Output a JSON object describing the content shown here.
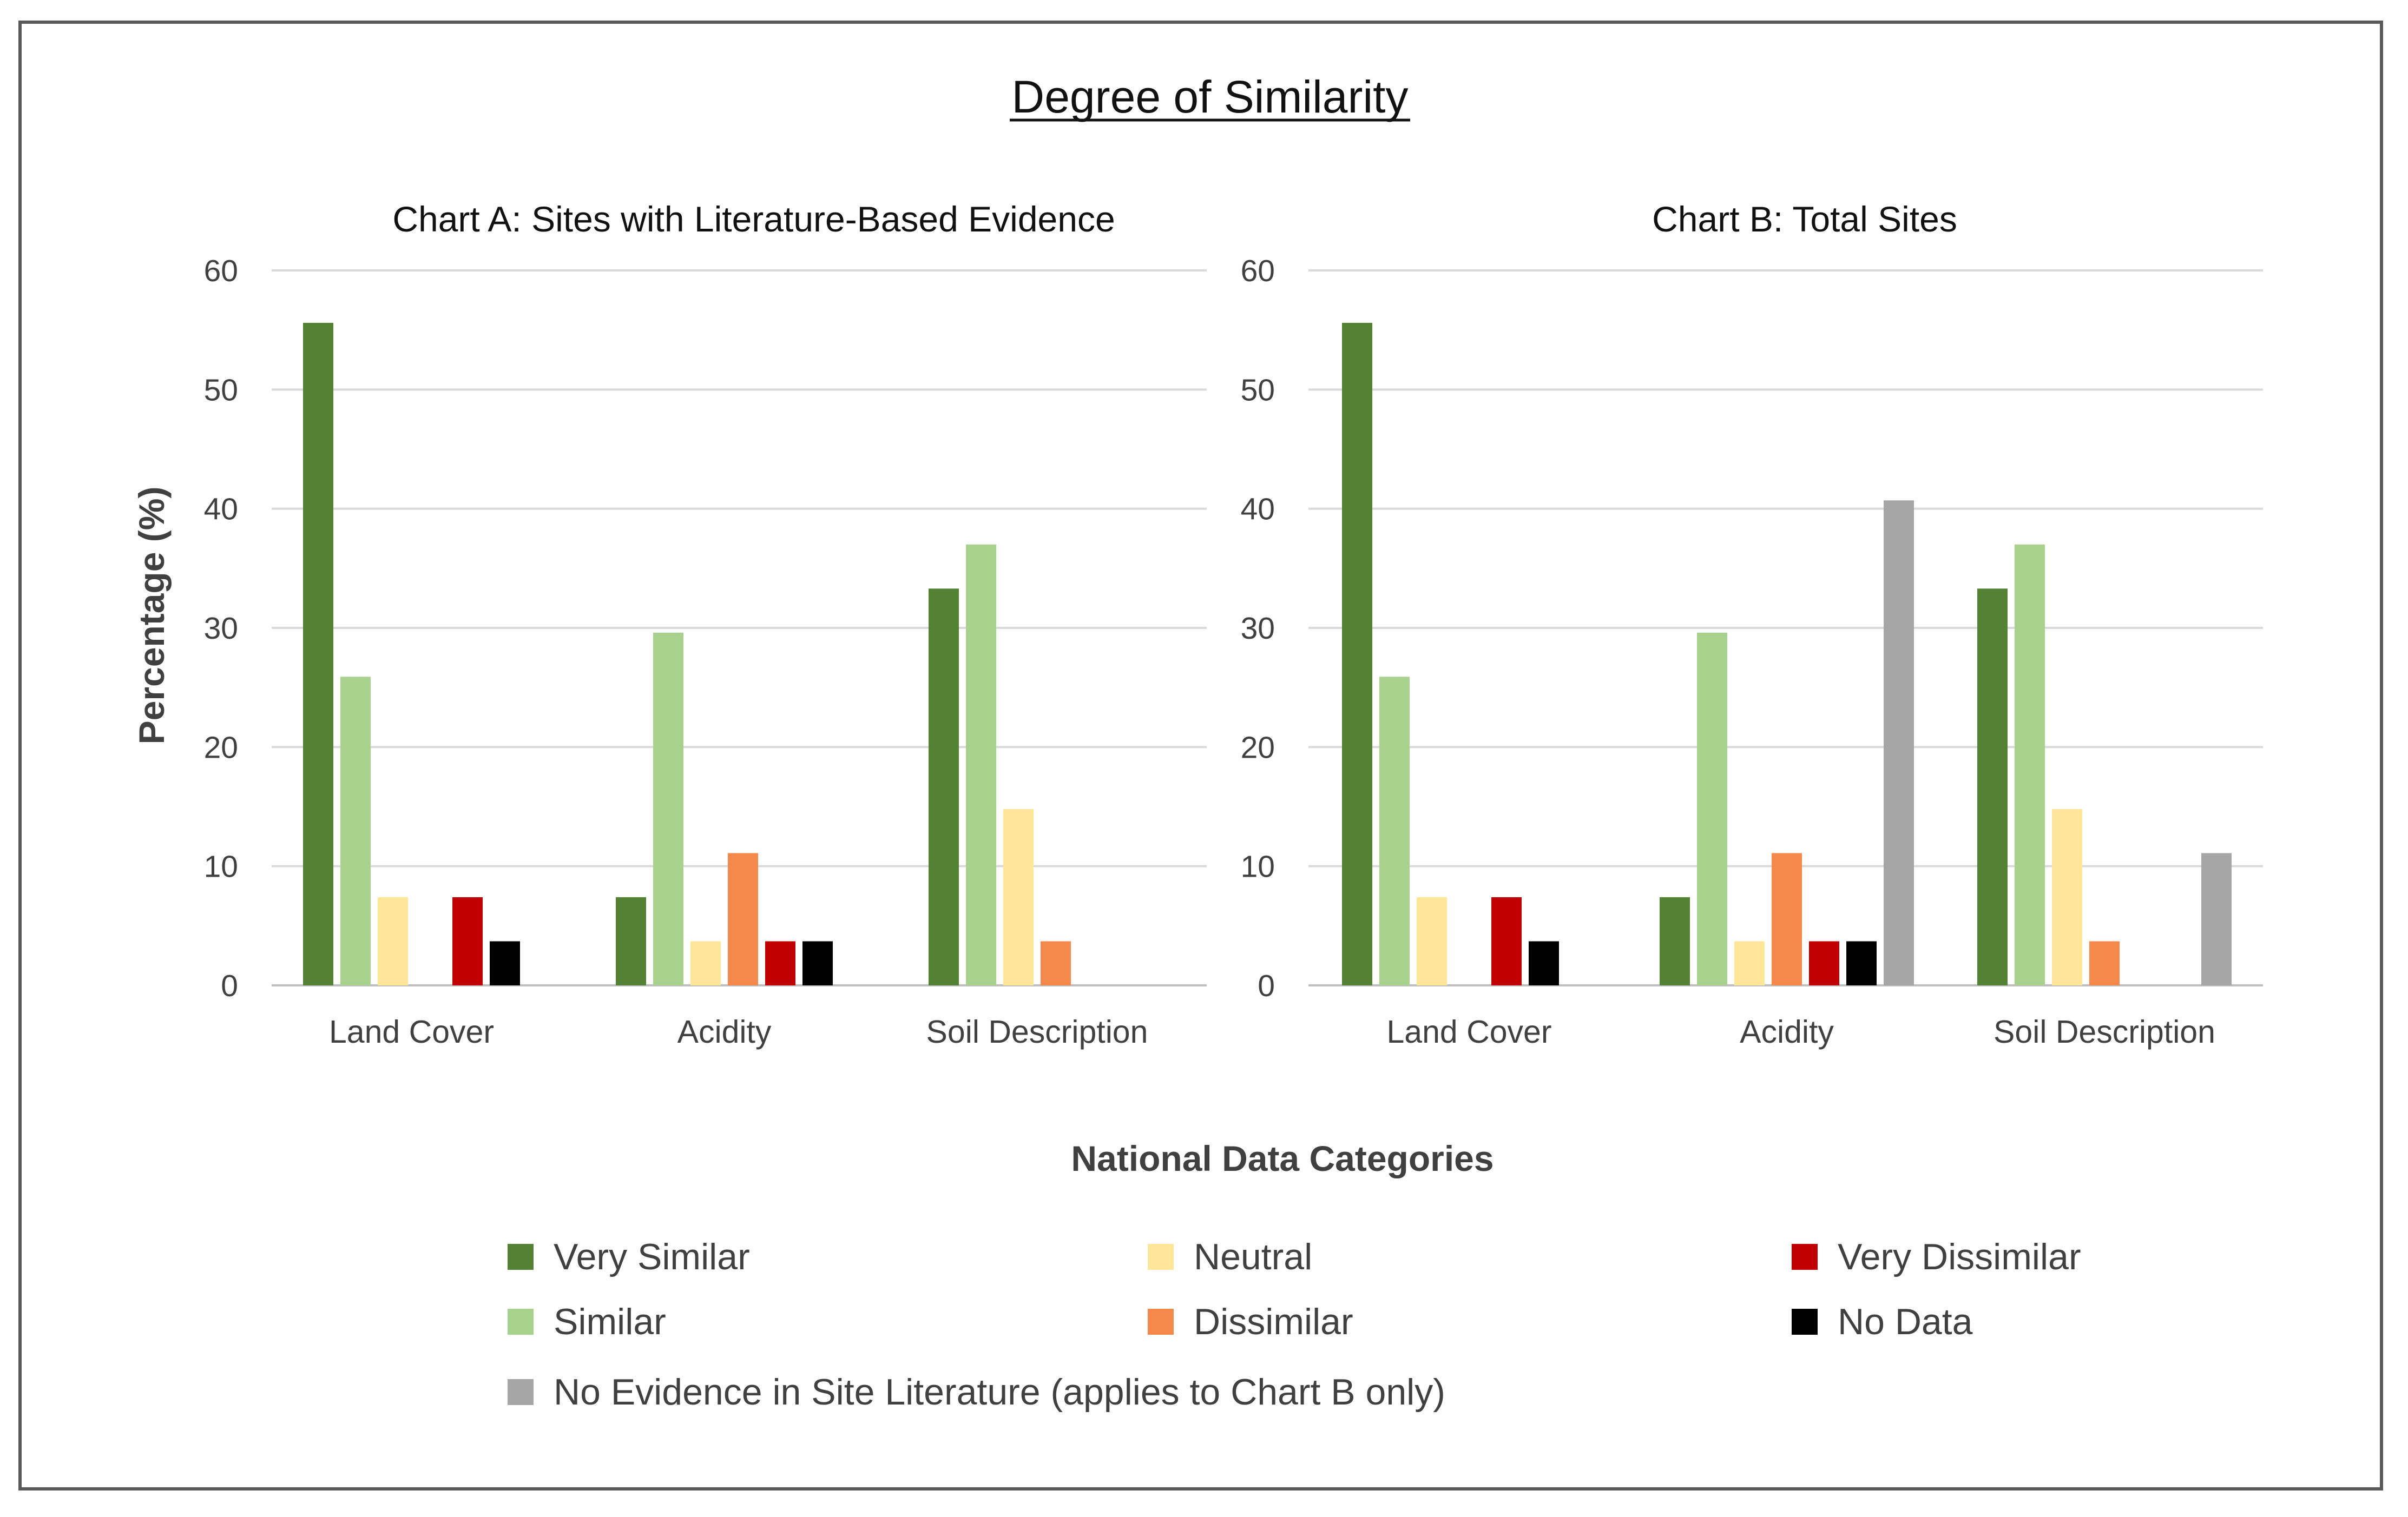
{
  "figure": {
    "title": "Degree of Similarity",
    "xlabel": "National Data Categories",
    "ylabel": "Percentage (%)"
  },
  "legend": [
    {
      "key": "very_similar",
      "label": "Very Similar",
      "color": "#548235"
    },
    {
      "key": "neutral",
      "label": "Neutral",
      "color": "#FFE699"
    },
    {
      "key": "very_dissimilar",
      "label": "Very Dissimilar",
      "color": "#C00000"
    },
    {
      "key": "similar",
      "label": "Similar",
      "color": "#A9D18E"
    },
    {
      "key": "dissimilar",
      "label": "Dissimilar",
      "color": "#F4894B"
    },
    {
      "key": "no_data",
      "label": "No Data",
      "color": "#000000"
    },
    {
      "key": "no_evidence",
      "label": "No Evidence in Site Literature (applies to Chart B only)",
      "color": "#A6A6A6"
    }
  ],
  "chart_data": [
    {
      "type": "bar",
      "title": "Chart A:   Sites with Literature-Based Evidence",
      "xlabel": "National Data Categories",
      "ylabel": "Percentage (%)",
      "ylim": [
        0,
        60
      ],
      "yticks": [
        0,
        10,
        20,
        30,
        40,
        50,
        60
      ],
      "categories": [
        "Land Cover",
        "Acidity",
        "Soil Description"
      ],
      "series": [
        {
          "name": "Very Similar",
          "color": "#548235",
          "values": [
            55.6,
            7.4,
            33.3
          ]
        },
        {
          "name": "Similar",
          "color": "#A9D18E",
          "values": [
            25.9,
            29.6,
            37.0
          ]
        },
        {
          "name": "Neutral",
          "color": "#FFE699",
          "values": [
            7.4,
            3.7,
            14.8
          ]
        },
        {
          "name": "Dissimilar",
          "color": "#F4894B",
          "values": [
            0,
            11.1,
            3.7
          ]
        },
        {
          "name": "Very Dissimilar",
          "color": "#C00000",
          "values": [
            7.4,
            3.7,
            0
          ]
        },
        {
          "name": "No Data",
          "color": "#000000",
          "values": [
            3.7,
            3.7,
            0
          ]
        }
      ]
    },
    {
      "type": "bar",
      "title": "Chart B:   Total Sites",
      "xlabel": "National Data Categories",
      "ylabel": "Percentage (%)",
      "ylim": [
        0,
        60
      ],
      "yticks": [
        0,
        10,
        20,
        30,
        40,
        50,
        60
      ],
      "categories": [
        "Land Cover",
        "Acidity",
        "Soil Description"
      ],
      "series": [
        {
          "name": "Very Similar",
          "color": "#548235",
          "values": [
            55.6,
            7.4,
            33.3
          ]
        },
        {
          "name": "Similar",
          "color": "#A9D18E",
          "values": [
            25.9,
            29.6,
            37.0
          ]
        },
        {
          "name": "Neutral",
          "color": "#FFE699",
          "values": [
            7.4,
            3.7,
            14.8
          ]
        },
        {
          "name": "Dissimilar",
          "color": "#F4894B",
          "values": [
            0,
            11.1,
            3.7
          ]
        },
        {
          "name": "Very Dissimilar",
          "color": "#C00000",
          "values": [
            7.4,
            3.7,
            0
          ]
        },
        {
          "name": "No Data",
          "color": "#000000",
          "values": [
            3.7,
            3.7,
            0
          ]
        },
        {
          "name": "No Evidence in Site Literature",
          "color": "#A6A6A6",
          "values": [
            0,
            40.7,
            11.1
          ]
        }
      ]
    }
  ]
}
